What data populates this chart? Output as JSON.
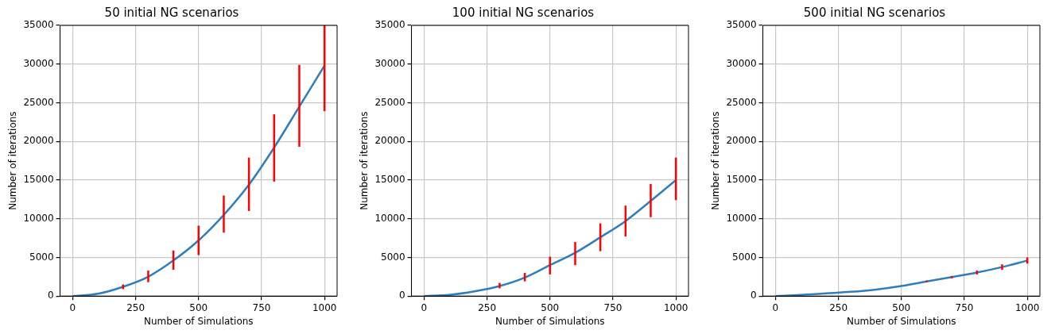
{
  "chart_data": [
    {
      "type": "line",
      "title": "50 initial NG scenarios",
      "xlabel": "Number of Simulations",
      "ylabel": "Number of iterations",
      "xlim": [
        -50,
        1050
      ],
      "xticks": [
        0,
        250,
        500,
        750,
        1000
      ],
      "ylim": [
        0,
        35000
      ],
      "yticks": [
        0,
        5000,
        10000,
        15000,
        20000,
        25000,
        30000,
        35000
      ],
      "grid": true,
      "marker": "none",
      "series": [
        {
          "color": "#2e7ebc",
          "x": [
            0,
            100,
            200,
            300,
            400,
            500,
            600,
            700,
            800,
            900,
            1000
          ],
          "values": [
            0,
            300,
            1200,
            2500,
            4600,
            7200,
            10500,
            14400,
            19200,
            24500,
            29800
          ],
          "errors": [
            null,
            null,
            [
              900,
              1500
            ],
            [
              1800,
              3300
            ],
            [
              3400,
              5900
            ],
            [
              5300,
              9100
            ],
            [
              8200,
              13000
            ],
            [
              11000,
              17900
            ],
            [
              14800,
              23500
            ],
            [
              19300,
              29900
            ],
            [
              23900,
              35000
            ]
          ]
        }
      ]
    },
    {
      "type": "line",
      "title": "100 initial NG scenarios",
      "xlabel": "Number of Simulations",
      "ylabel": "Number of iterations",
      "xlim": [
        -50,
        1050
      ],
      "xticks": [
        0,
        250,
        500,
        750,
        1000
      ],
      "ylim": [
        0,
        35000
      ],
      "yticks": [
        0,
        5000,
        10000,
        15000,
        20000,
        25000,
        30000,
        35000
      ],
      "grid": true,
      "marker": "none",
      "series": [
        {
          "color": "#2e7ebc",
          "x": [
            0,
            100,
            200,
            300,
            400,
            500,
            600,
            700,
            800,
            900,
            1000
          ],
          "values": [
            0,
            150,
            600,
            1300,
            2400,
            4000,
            5600,
            7600,
            9700,
            12300,
            15000
          ],
          "errors": [
            null,
            null,
            null,
            [
              1000,
              1700
            ],
            [
              1900,
              3000
            ],
            [
              2800,
              5100
            ],
            [
              4000,
              7000
            ],
            [
              5800,
              9400
            ],
            [
              7700,
              11700
            ],
            [
              10200,
              14500
            ],
            [
              12400,
              17900
            ]
          ]
        }
      ]
    },
    {
      "type": "line",
      "title": "500 initial NG scenarios",
      "xlabel": "Number of Simulations",
      "ylabel": "Number of iterations",
      "xlim": [
        -50,
        1050
      ],
      "xticks": [
        0,
        250,
        500,
        750,
        1000
      ],
      "ylim": [
        0,
        35000
      ],
      "yticks": [
        0,
        5000,
        10000,
        15000,
        20000,
        25000,
        30000,
        35000
      ],
      "grid": true,
      "marker": "none",
      "series": [
        {
          "color": "#2e7ebc",
          "x": [
            0,
            100,
            200,
            300,
            400,
            500,
            600,
            700,
            800,
            900,
            1000
          ],
          "values": [
            0,
            150,
            350,
            550,
            850,
            1300,
            1900,
            2450,
            3050,
            3750,
            4600
          ],
          "errors": [
            null,
            null,
            null,
            null,
            null,
            null,
            [
              1800,
              2000
            ],
            [
              2300,
              2600
            ],
            [
              2800,
              3300
            ],
            [
              3400,
              4100
            ],
            [
              4200,
              5000
            ]
          ]
        }
      ]
    }
  ]
}
